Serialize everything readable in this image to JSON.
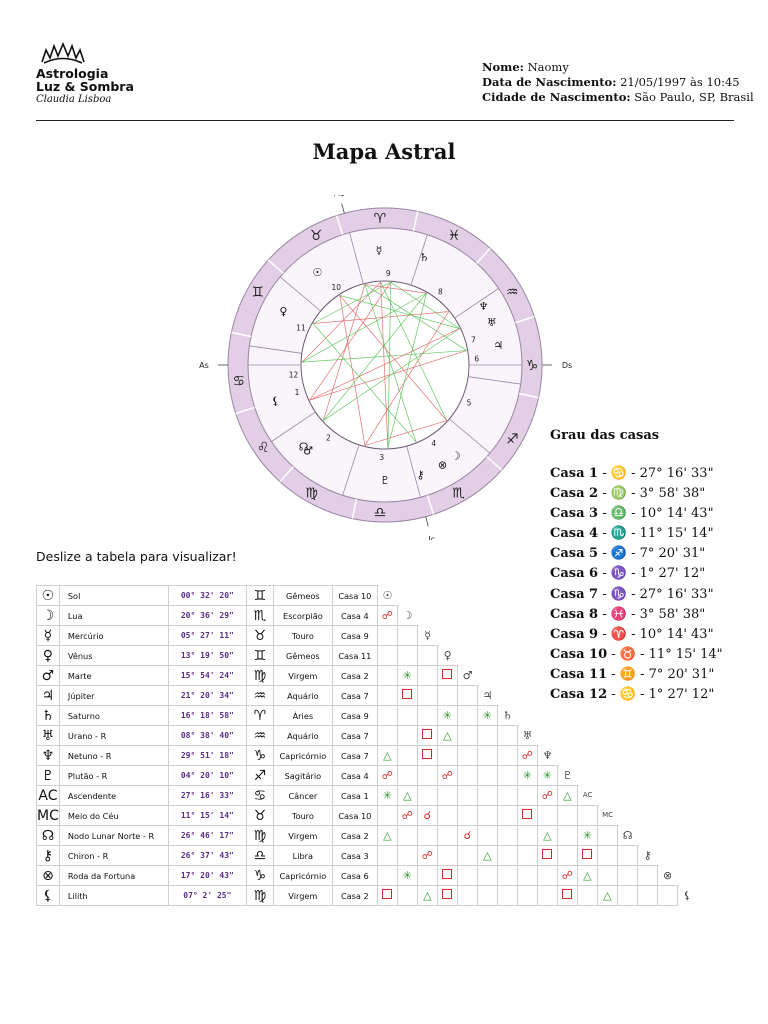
{
  "logo": {
    "line1": "Astrologia",
    "line2": "Luz & Sombra",
    "line3": "Claudia Lisboa"
  },
  "info": {
    "name_label": "Nome:",
    "name": "Naomy",
    "date_label": "Data de Nascimento:",
    "date": "21/05/1997 às 10:45",
    "city_label": "Cidade de Nascimento:",
    "city": "São Paulo, SP, Brasil"
  },
  "title": "Mapa Astral",
  "wheel": {
    "labels": {
      "mc": "Mc",
      "ic": "Ic",
      "as": "As",
      "ds": "Ds"
    },
    "house_numbers": [
      "1",
      "2",
      "3",
      "4",
      "5",
      "6",
      "7",
      "8",
      "9",
      "10",
      "11",
      "12"
    ],
    "sign_glyphs": [
      "♋",
      "♌",
      "♍",
      "♎",
      "♏",
      "♐",
      "♑",
      "♒",
      "♓",
      "♈",
      "♉",
      "♊"
    ]
  },
  "houses_title": "Grau das casas",
  "houses": [
    {
      "label": "Casa 1",
      "sign": "♋",
      "deg": "27° 16' 33\""
    },
    {
      "label": "Casa 2",
      "sign": "♍",
      "deg": "3° 58' 38\""
    },
    {
      "label": "Casa 3",
      "sign": "♎",
      "deg": "10° 14' 43\""
    },
    {
      "label": "Casa 4",
      "sign": "♏",
      "deg": "11° 15' 14\""
    },
    {
      "label": "Casa 5",
      "sign": "♐",
      "deg": "7° 20' 31\""
    },
    {
      "label": "Casa 6",
      "sign": "♑",
      "deg": "1° 27' 12\""
    },
    {
      "label": "Casa 7",
      "sign": "♑",
      "deg": "27° 16' 33\""
    },
    {
      "label": "Casa 8",
      "sign": "♓",
      "deg": "3° 58' 38\""
    },
    {
      "label": "Casa 9",
      "sign": "♈",
      "deg": "10° 14' 43\""
    },
    {
      "label": "Casa 10",
      "sign": "♉",
      "deg": "11° 15' 14\""
    },
    {
      "label": "Casa 11",
      "sign": "♊",
      "deg": "7° 20' 31\""
    },
    {
      "label": "Casa 12",
      "sign": "♋",
      "deg": "1° 27' 12\""
    }
  ],
  "scroll_note": "Deslize a tabela para visualizar!",
  "table": [
    {
      "sym": "☉",
      "name": "Sol",
      "deg": "00° 32' 20\"",
      "sign": "♊",
      "sign_name": "Gêmeos",
      "house": "Casa 10"
    },
    {
      "sym": "☽",
      "name": "Lua",
      "deg": "20° 36' 29\"",
      "sign": "♏",
      "sign_name": "Escorpião",
      "house": "Casa 4"
    },
    {
      "sym": "☿",
      "name": "Mercúrio",
      "deg": "05° 27' 11\"",
      "sign": "♉",
      "sign_name": "Touro",
      "house": "Casa 9"
    },
    {
      "sym": "♀",
      "name": "Vênus",
      "deg": "13° 19' 50\"",
      "sign": "♊",
      "sign_name": "Gêmeos",
      "house": "Casa 11"
    },
    {
      "sym": "♂",
      "name": "Marte",
      "deg": "15° 54' 24\"",
      "sign": "♍",
      "sign_name": "Virgem",
      "house": "Casa 2"
    },
    {
      "sym": "♃",
      "name": "Júpiter",
      "deg": "21° 20' 34\"",
      "sign": "♒",
      "sign_name": "Aquário",
      "house": "Casa 7"
    },
    {
      "sym": "♄",
      "name": "Saturno",
      "deg": "16° 18' 58\"",
      "sign": "♈",
      "sign_name": "Áries",
      "house": "Casa 9"
    },
    {
      "sym": "♅",
      "name": "Urano - R",
      "deg": "08° 38' 40\"",
      "sign": "♒",
      "sign_name": "Aquário",
      "house": "Casa 7"
    },
    {
      "sym": "♆",
      "name": "Netuno - R",
      "deg": "29° 51' 18\"",
      "sign": "♑",
      "sign_name": "Capricórnio",
      "house": "Casa 7"
    },
    {
      "sym": "♇",
      "name": "Plutão - R",
      "deg": "04° 20' 10\"",
      "sign": "♐",
      "sign_name": "Sagitário",
      "house": "Casa 4"
    },
    {
      "sym": "AC",
      "name": "Ascendente",
      "deg": "27° 16' 33\"",
      "sign": "♋",
      "sign_name": "Câncer",
      "house": "Casa 1"
    },
    {
      "sym": "MC",
      "name": "Meio do Céu",
      "deg": "11° 15' 14\"",
      "sign": "♉",
      "sign_name": "Touro",
      "house": "Casa 10"
    },
    {
      "sym": "☊",
      "name": "Nodo Lunar Norte - R",
      "deg": "26° 46' 17\"",
      "sign": "♍",
      "sign_name": "Virgem",
      "house": "Casa 2"
    },
    {
      "sym": "⚷",
      "name": "Chiron - R",
      "deg": "26° 37' 43\"",
      "sign": "♎",
      "sign_name": "Libra",
      "house": "Casa 3"
    },
    {
      "sym": "⊗",
      "name": "Roda da Fortuna",
      "deg": "17° 20' 43\"",
      "sign": "♑",
      "sign_name": "Capricórnio",
      "house": "Casa 6"
    },
    {
      "sym": "⚸",
      "name": "Lilith",
      "deg": "07° 2' 25\"",
      "sign": "♍",
      "sign_name": "Virgem",
      "house": "Casa 2"
    }
  ],
  "aspect_labels": [
    "☉",
    "☽",
    "☿",
    "♀",
    "♂",
    "♃",
    "♄",
    "♅",
    "♆",
    "♇",
    "AC",
    "MC",
    "☊",
    "⚷",
    "⊗",
    "⚸"
  ],
  "aspects": [
    [],
    [
      "opp"
    ],
    [
      "",
      "",
      ""
    ],
    [
      "",
      "",
      "",
      ""
    ],
    [
      "",
      "sex",
      "",
      "sq",
      ""
    ],
    [
      "",
      "sq",
      "",
      "",
      "",
      ""
    ],
    [
      "",
      "",
      "",
      "sex",
      "",
      "sex",
      ""
    ],
    [
      "",
      "",
      "sq",
      "tri",
      "",
      "",
      "",
      ""
    ],
    [
      "tri",
      "",
      "sq",
      "",
      "",
      "",
      "",
      "opp",
      ""
    ],
    [
      "opp",
      "",
      "",
      "opp",
      "",
      "",
      "",
      "sex",
      "sex",
      ""
    ],
    [
      "sex",
      "tri",
      "",
      "",
      "",
      "",
      "",
      "",
      "opp",
      "tri",
      ""
    ],
    [
      "",
      "opp",
      "conj",
      "",
      "",
      "",
      "",
      "sq",
      "",
      "",
      "",
      ""
    ],
    [
      "tri",
      "",
      "",
      "",
      "conj",
      "",
      "",
      "",
      "tri",
      "",
      "sex",
      ""
    ],
    [
      "",
      "",
      "opp",
      "",
      "",
      "tri",
      "",
      "",
      "sq",
      "",
      "sq",
      ""
    ],
    [
      "",
      "sex",
      "",
      "sq",
      "",
      "",
      "",
      "",
      "",
      "opp",
      "tri",
      ""
    ],
    [
      "sq",
      "",
      "tri",
      "sq",
      "",
      "",
      "",
      "",
      "",
      "sq",
      "",
      "tri"
    ]
  ]
}
